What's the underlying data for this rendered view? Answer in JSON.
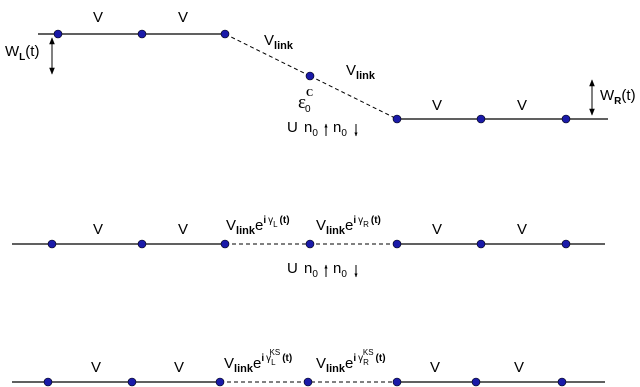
{
  "diagram": {
    "colors": {
      "site": "#1a1aa8",
      "line": "#000000"
    },
    "panel1": {
      "hopping_left_1": "V",
      "hopping_left_2": "V",
      "bias_left": {
        "base": "W",
        "sub": "L",
        "arg": "(t)"
      },
      "link_left": {
        "base": "V",
        "sub": "link"
      },
      "link_right": {
        "base": "V",
        "sub": "link"
      },
      "dot_energy": {
        "base": "ε",
        "sub": "0",
        "sup": "C"
      },
      "interaction": {
        "U": "U",
        "n": "n",
        "sub": "0"
      },
      "hopping_right_1": "V",
      "hopping_right_2": "V",
      "bias_right": {
        "base": "W",
        "sub": "R",
        "arg": "(t)"
      }
    },
    "panel2": {
      "hopping_left_1": "V",
      "hopping_left_2": "V",
      "link_left": {
        "base": "V",
        "sub": "link",
        "e": "e",
        "i": "i",
        "gamma": "γ",
        "gsub": "L",
        "arg": "(t)"
      },
      "link_right": {
        "base": "V",
        "sub": "link",
        "e": "e",
        "i": "i",
        "gamma": "γ",
        "gsub": "R",
        "arg": "(t)"
      },
      "interaction": {
        "U": "U",
        "n": "n",
        "sub": "0"
      },
      "hopping_right_1": "V",
      "hopping_right_2": "V"
    },
    "panel3": {
      "hopping_left_1": "V",
      "hopping_left_2": "V",
      "link_left": {
        "base": "V",
        "sub": "link",
        "e": "e",
        "i": "i",
        "gamma": "γ",
        "gsub": "L",
        "gsup": "KS",
        "arg": "(t)"
      },
      "link_right": {
        "base": "V",
        "sub": "link",
        "e": "e",
        "i": "i",
        "gamma": "γ",
        "gsub": "R",
        "gsup": "KS",
        "arg": "(t)"
      },
      "hopping_right_1": "V",
      "hopping_right_2": "V"
    }
  }
}
